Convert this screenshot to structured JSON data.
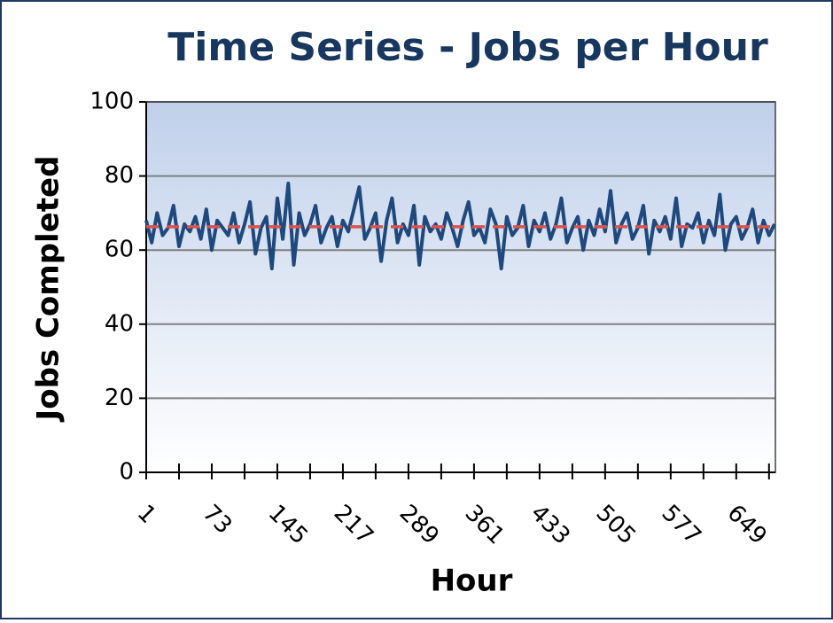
{
  "chart_data": {
    "type": "line",
    "title": "Time Series - Jobs per Hour",
    "x_label": "Hour",
    "y_label": "Jobs Completed",
    "x": [
      1,
      7,
      13,
      19,
      25,
      31,
      37,
      43,
      49,
      55,
      61,
      67,
      73,
      79,
      85,
      91,
      97,
      103,
      109,
      115,
      121,
      127,
      133,
      139,
      145,
      151,
      157,
      163,
      169,
      175,
      181,
      187,
      193,
      199,
      205,
      211,
      217,
      223,
      229,
      235,
      241,
      247,
      253,
      259,
      265,
      271,
      277,
      283,
      289,
      295,
      301,
      307,
      313,
      319,
      325,
      331,
      337,
      343,
      349,
      355,
      361,
      367,
      373,
      379,
      385,
      391,
      397,
      403,
      409,
      415,
      421,
      427,
      433,
      439,
      445,
      451,
      457,
      463,
      469,
      475,
      481,
      487,
      493,
      499,
      505,
      511,
      517,
      523,
      529,
      535,
      541,
      547,
      553,
      559,
      565,
      571,
      577,
      583,
      589,
      595,
      601,
      607,
      613,
      619,
      625,
      631,
      637,
      643,
      649,
      655,
      661,
      667,
      673,
      679,
      685,
      691
    ],
    "series": [
      {
        "color": "#1f497d",
        "values": [
          68,
          62,
          70,
          64,
          66,
          72,
          61,
          67,
          65,
          69,
          63,
          71,
          60,
          68,
          66,
          64,
          70,
          62,
          67,
          73,
          59,
          66,
          69,
          55,
          74,
          63,
          78,
          56,
          70,
          64,
          67,
          72,
          62,
          66,
          69,
          61,
          68,
          65,
          71,
          77,
          63,
          66,
          70,
          57,
          68,
          74,
          62,
          67,
          64,
          72,
          56,
          69,
          65,
          67,
          63,
          70,
          66,
          61,
          68,
          73,
          64,
          66,
          62,
          71,
          67,
          55,
          69,
          64,
          66,
          72,
          61,
          68,
          65,
          70,
          63,
          67,
          74,
          62,
          66,
          69,
          60,
          68,
          64,
          71,
          65,
          76,
          62,
          67,
          70,
          63,
          66,
          72,
          59,
          68,
          65,
          69,
          63,
          74,
          61,
          67,
          66,
          70,
          62,
          68,
          64,
          75,
          60,
          67,
          69,
          63,
          66,
          71,
          62,
          68,
          64,
          67
        ]
      }
    ],
    "reference_line": {
      "value": 66.3,
      "color": "#d9534f"
    },
    "xlim": [
      1,
      692
    ],
    "xticks": [
      1,
      73,
      145,
      217,
      289,
      361,
      433,
      505,
      577,
      649
    ],
    "xminor_ticks": [
      37,
      109,
      181,
      253,
      325,
      397,
      469,
      541,
      613,
      685
    ],
    "ylim": [
      0,
      100
    ],
    "yticks": [
      0,
      20,
      40,
      60,
      80,
      100
    ],
    "grid": true
  }
}
